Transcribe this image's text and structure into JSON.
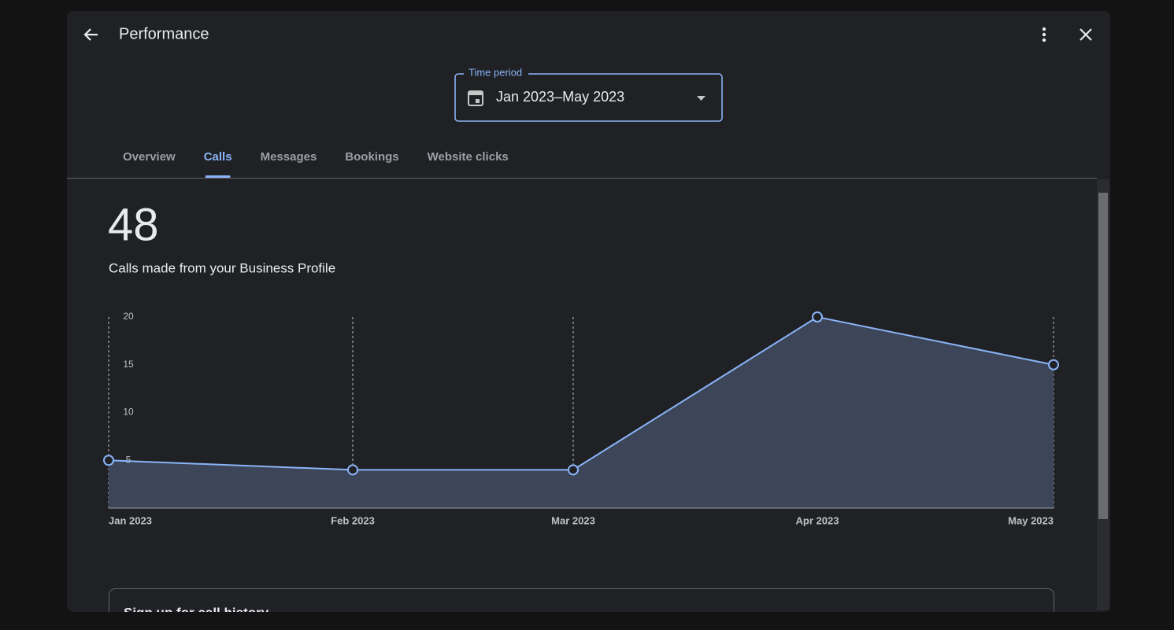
{
  "header": {
    "title": "Performance"
  },
  "time_period": {
    "label": "Time period",
    "value": "Jan 2023–May 2023"
  },
  "tabs": [
    "Overview",
    "Calls",
    "Messages",
    "Bookings",
    "Website clicks"
  ],
  "active_tab": 1,
  "summary": {
    "total": 48,
    "caption": "Calls made from your Business Profile"
  },
  "chart_data": {
    "type": "area",
    "x": [
      "Jan 2023",
      "Feb 2023",
      "Mar 2023",
      "Apr 2023",
      "May 2023"
    ],
    "series": [
      {
        "name": "Calls",
        "color": "#8ab4f8",
        "values": [
          5,
          4,
          4,
          20,
          15
        ]
      }
    ],
    "ylim": [
      0,
      20
    ],
    "yticks": [
      5,
      10,
      15,
      20
    ],
    "grid": true
  },
  "card": {
    "title": "Sign up for call history"
  }
}
